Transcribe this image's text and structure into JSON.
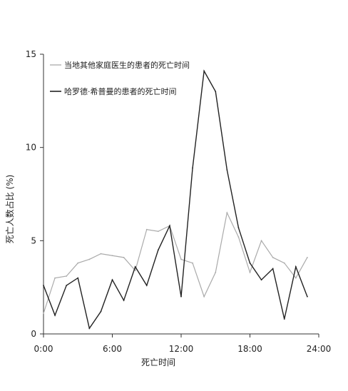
{
  "chart_data": {
    "type": "line",
    "title": "",
    "xlabel": "死亡时间",
    "ylabel": "死亡人数占比 (%)",
    "xlim": [
      0,
      24
    ],
    "ylim": [
      0,
      15
    ],
    "x_ticks": [
      0,
      6,
      12,
      18,
      24
    ],
    "x_tick_labels": [
      "0:00",
      "6:00",
      "12:00",
      "18:00",
      "24:00"
    ],
    "y_ticks": [
      0,
      5,
      10,
      15
    ],
    "y_tick_labels": [
      "0",
      "5",
      "10",
      "15"
    ],
    "grid": false,
    "legend_position": "top-left",
    "x": [
      0,
      1,
      2,
      3,
      4,
      5,
      6,
      7,
      8,
      9,
      10,
      11,
      12,
      13,
      14,
      15,
      16,
      17,
      18,
      19,
      20,
      21,
      22,
      23,
      24
    ],
    "series": [
      {
        "name": "当地其他家庭医生的患者的死亡时间",
        "color": "#aaaaaa",
        "values": [
          1.1,
          3.0,
          3.1,
          3.8,
          4.0,
          4.3,
          4.2,
          4.1,
          3.4,
          5.6,
          5.5,
          5.8,
          4.0,
          3.8,
          2.0,
          3.3,
          6.5,
          5.2,
          3.3,
          5.0,
          4.1,
          3.8,
          3.0,
          4.1,
          null
        ]
      },
      {
        "name": "哈罗德·希普曼的患者的死亡时间",
        "color": "#222222",
        "values": [
          2.6,
          1.0,
          2.6,
          3.0,
          0.3,
          1.2,
          2.9,
          1.8,
          3.6,
          2.6,
          4.5,
          5.8,
          2.0,
          8.9,
          14.1,
          13.0,
          8.8,
          5.7,
          3.8,
          2.9,
          3.5,
          0.8,
          3.6,
          2.0,
          null
        ]
      }
    ]
  }
}
